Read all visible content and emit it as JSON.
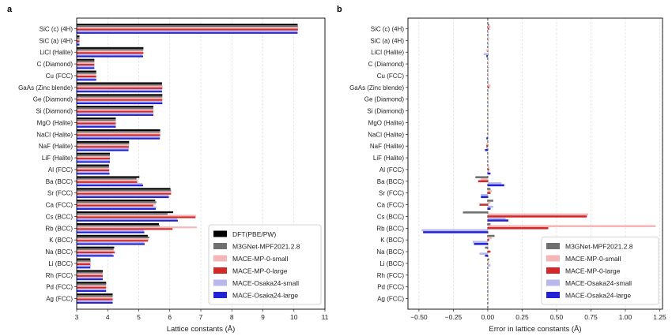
{
  "chart_data": [
    {
      "panel": "a",
      "type": "bar",
      "orientation": "horizontal",
      "xlabel": "Lattice constants (Å)",
      "xlim": [
        3,
        11
      ],
      "xticks": [
        "3",
        "4",
        "5",
        "6",
        "7",
        "8",
        "9",
        "10",
        "11"
      ],
      "grid": "x",
      "legend_position": "lower-right",
      "categories": [
        "SiC (c) (4H)",
        "SiC (a) (4H)",
        "LiCl (Halite)",
        "C (Diamond)",
        "Cu (FCC)",
        "GaAs (Zinc blende)",
        "Ge (Diamond)",
        "Si (Diamond)",
        "MgO (Halite)",
        "NaCl (Halite)",
        "NaF (Halite)",
        "LiF (Halite)",
        "Al (FCC)",
        "Ba (BCC)",
        "Sr (FCC)",
        "Ca (FCC)",
        "Cs (BCC)",
        "Rb (BCC)",
        "K (BCC)",
        "Na (BCC)",
        "Li (BCC)",
        "Rh (FCC)",
        "Pd (FCC)",
        "Ag (FCC)"
      ],
      "series": [
        {
          "name": "DFT(PBE/PW)",
          "color": "#000000",
          "values": [
            10.12,
            3.09,
            5.15,
            3.57,
            3.63,
            5.75,
            5.76,
            5.47,
            4.26,
            5.69,
            4.69,
            4.07,
            4.04,
            5.02,
            6.02,
            5.53,
            6.11,
            5.65,
            5.29,
            4.21,
            3.44,
            3.84,
            3.95,
            4.16
          ]
        },
        {
          "name": "M3GNet-MPF2021.2.8",
          "color": "#707070",
          "values": [
            10.13,
            3.09,
            5.15,
            3.57,
            3.63,
            5.75,
            5.76,
            5.47,
            4.26,
            5.69,
            4.69,
            4.07,
            4.04,
            4.93,
            6.04,
            5.57,
            5.93,
            5.67,
            5.34,
            4.19,
            3.45,
            3.84,
            3.95,
            4.16
          ]
        },
        {
          "name": "MACE-MP-0-small",
          "color": "#f4b6b6",
          "values": [
            10.14,
            3.1,
            5.14,
            3.57,
            3.63,
            5.77,
            5.76,
            5.47,
            4.26,
            5.69,
            4.68,
            4.07,
            4.05,
            4.97,
            6.05,
            5.55,
            6.84,
            6.87,
            5.32,
            4.21,
            3.45,
            3.84,
            3.95,
            4.16
          ]
        },
        {
          "name": "MACE-MP-0-large",
          "color": "#d42828",
          "values": [
            10.13,
            3.09,
            5.15,
            3.57,
            3.63,
            5.76,
            5.76,
            5.47,
            4.26,
            5.69,
            4.68,
            4.07,
            4.05,
            4.95,
            6.04,
            5.47,
            6.83,
            6.09,
            5.3,
            4.23,
            3.44,
            3.84,
            3.95,
            4.16
          ]
        },
        {
          "name": "MACE-Osaka24-small",
          "color": "#b8b8ec",
          "values": [
            10.12,
            3.09,
            5.12,
            3.57,
            3.63,
            5.75,
            5.76,
            5.47,
            4.26,
            5.69,
            4.68,
            4.07,
            4.05,
            5.12,
            5.97,
            5.57,
            6.24,
            5.17,
            5.18,
            4.15,
            3.46,
            3.84,
            3.95,
            4.16
          ]
        },
        {
          "name": "MACE-Osaka24-large",
          "color": "#2323d6",
          "values": [
            10.12,
            3.09,
            5.14,
            3.57,
            3.63,
            5.75,
            5.76,
            5.47,
            4.26,
            5.68,
            4.67,
            4.07,
            4.06,
            5.14,
            5.97,
            5.55,
            6.26,
            5.18,
            5.19,
            4.19,
            3.44,
            3.84,
            3.95,
            4.16
          ]
        }
      ]
    },
    {
      "panel": "b",
      "type": "bar",
      "orientation": "horizontal",
      "xlabel": "Error in lattice constants (Å)",
      "xlim": [
        -0.58,
        1.27
      ],
      "xticks": [
        "−0.50",
        "−0.25",
        "0.00",
        "0.25",
        "0.50",
        "0.75",
        "1.00",
        "1.25"
      ],
      "grid": "x",
      "zero_line": "dashed",
      "legend_position": "lower-right",
      "categories": [
        "SiC (c) (4H)",
        "SiC (a) (4H)",
        "LiCl (Halite)",
        "C (Diamond)",
        "Cu (FCC)",
        "GaAs (Zinc blende)",
        "Ge (Diamond)",
        "Si (Diamond)",
        "MgO (Halite)",
        "NaCl (Halite)",
        "NaF (Halite)",
        "LiF (Halite)",
        "Al (FCC)",
        "Ba (BCC)",
        "Sr (FCC)",
        "Ca (FCC)",
        "Cs (BCC)",
        "Rb (BCC)",
        "K (BCC)",
        "Na (BCC)",
        "Li (BCC)",
        "Rh (FCC)",
        "Pd (FCC)",
        "Ag (FCC)"
      ],
      "series": [
        {
          "name": "M3GNet-MPF2021.2.8",
          "color": "#707070",
          "values": [
            0.01,
            0.0,
            0.0,
            0.0,
            0.0,
            0.0,
            0.0,
            0.0,
            0.0,
            0.0,
            0.0,
            0.0,
            0.0,
            -0.09,
            0.02,
            0.04,
            -0.18,
            0.02,
            0.05,
            -0.02,
            0.01,
            0.0,
            0.0,
            0.0
          ]
        },
        {
          "name": "MACE-MP-0-small",
          "color": "#f4b6b6",
          "values": [
            0.02,
            0.01,
            -0.01,
            0.0,
            0.0,
            0.02,
            0.0,
            0.0,
            0.0,
            0.0,
            -0.01,
            0.0,
            0.01,
            -0.05,
            0.03,
            0.02,
            0.73,
            1.22,
            0.03,
            0.0,
            0.01,
            0.0,
            0.0,
            0.0
          ]
        },
        {
          "name": "MACE-MP-0-large",
          "color": "#d42828",
          "values": [
            0.01,
            0.0,
            0.0,
            0.0,
            0.0,
            0.01,
            0.0,
            0.0,
            0.0,
            0.0,
            -0.01,
            0.0,
            0.01,
            -0.07,
            0.02,
            -0.06,
            0.72,
            0.44,
            0.01,
            0.02,
            0.0,
            0.0,
            0.0,
            0.0
          ]
        },
        {
          "name": "MACE-Osaka24-small",
          "color": "#b8b8ec",
          "values": [
            0.0,
            0.0,
            -0.03,
            0.0,
            0.0,
            0.0,
            0.0,
            0.0,
            0.0,
            0.0,
            -0.01,
            0.0,
            0.01,
            0.1,
            -0.05,
            0.04,
            0.13,
            -0.48,
            -0.11,
            -0.06,
            0.02,
            0.0,
            0.0,
            0.0
          ]
        },
        {
          "name": "MACE-Osaka24-large",
          "color": "#2323d6",
          "values": [
            0.0,
            0.0,
            -0.01,
            0.0,
            0.0,
            0.0,
            0.0,
            0.0,
            0.0,
            -0.01,
            -0.02,
            0.0,
            0.02,
            0.12,
            -0.05,
            0.02,
            0.15,
            -0.47,
            -0.1,
            -0.02,
            0.0,
            0.0,
            0.0,
            0.0
          ]
        }
      ]
    }
  ]
}
